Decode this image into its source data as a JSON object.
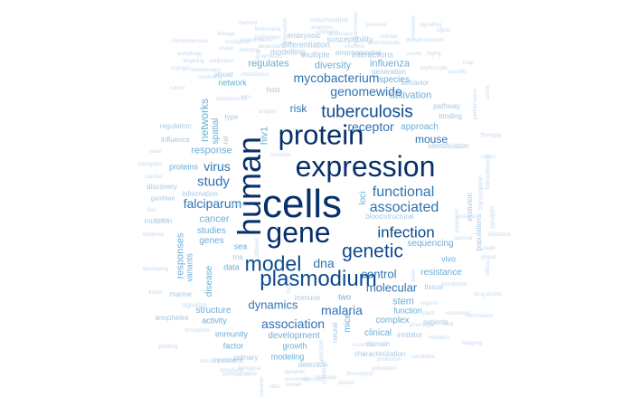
{
  "colors": {
    "darkest": "#08306b",
    "dark": "#0b4a8f",
    "mid": "#2f72b4",
    "light": "#6aaed6",
    "pale": "#a6c8e4",
    "faint": "#c6dbef"
  },
  "words": [
    {
      "text": "cells",
      "tier": "darkest",
      "orient": "h"
    },
    {
      "text": "human",
      "tier": "darkest",
      "orient": "v"
    },
    {
      "text": "expression",
      "tier": "darkest",
      "orient": "h"
    },
    {
      "text": "gene",
      "tier": "darkest",
      "orient": "h"
    },
    {
      "text": "protein",
      "tier": "darkest",
      "orient": "h"
    },
    {
      "text": "plasmodium",
      "tier": "dark",
      "orient": "h"
    },
    {
      "text": "model",
      "tier": "dark",
      "orient": "h"
    },
    {
      "text": "genetic",
      "tier": "dark",
      "orient": "h"
    },
    {
      "text": "tuberculosis",
      "tier": "dark",
      "orient": "h"
    },
    {
      "text": "infection",
      "tier": "dark",
      "orient": "h"
    },
    {
      "text": "associated",
      "tier": "mid",
      "orient": "h"
    },
    {
      "text": "functional",
      "tier": "mid",
      "orient": "h"
    },
    {
      "text": "genomewide",
      "tier": "mid",
      "orient": "h"
    },
    {
      "text": "mycobacterium",
      "tier": "mid",
      "orient": "h"
    },
    {
      "text": "receptor",
      "tier": "mid",
      "orient": "h"
    },
    {
      "text": "study",
      "tier": "mid",
      "orient": "h"
    },
    {
      "text": "virus",
      "tier": "mid",
      "orient": "h"
    },
    {
      "text": "falciparum",
      "tier": "mid",
      "orient": "h"
    },
    {
      "text": "dna",
      "tier": "mid",
      "orient": "h"
    },
    {
      "text": "molecular",
      "tier": "mid",
      "orient": "h"
    },
    {
      "text": "control",
      "tier": "mid",
      "orient": "h"
    },
    {
      "text": "malaria",
      "tier": "mid",
      "orient": "h"
    },
    {
      "text": "association",
      "tier": "mid",
      "orient": "h"
    },
    {
      "text": "dynamics",
      "tier": "mid",
      "orient": "h"
    },
    {
      "text": "mouse",
      "tier": "mid",
      "orient": "h"
    },
    {
      "text": "risk",
      "tier": "mid",
      "orient": "h"
    },
    {
      "text": "networks",
      "tier": "light",
      "orient": "v"
    },
    {
      "text": "hiv1",
      "tier": "light",
      "orient": "v"
    },
    {
      "text": "response",
      "tier": "light",
      "orient": "h"
    },
    {
      "text": "cancer",
      "tier": "light",
      "orient": "h"
    },
    {
      "text": "genes",
      "tier": "light",
      "orient": "h"
    },
    {
      "text": "studies",
      "tier": "light",
      "orient": "h"
    },
    {
      "text": "responses",
      "tier": "light",
      "orient": "v"
    },
    {
      "text": "regulates",
      "tier": "light",
      "orient": "h"
    },
    {
      "text": "diversity",
      "tier": "light",
      "orient": "h"
    },
    {
      "text": "influenza",
      "tier": "light",
      "orient": "h"
    },
    {
      "text": "species",
      "tier": "light",
      "orient": "h"
    },
    {
      "text": "activation",
      "tier": "light",
      "orient": "h"
    },
    {
      "text": "approach",
      "tier": "light",
      "orient": "h"
    },
    {
      "text": "loci",
      "tier": "light",
      "orient": "v"
    },
    {
      "text": "resistance",
      "tier": "light",
      "orient": "h"
    },
    {
      "text": "sequencing",
      "tier": "light",
      "orient": "h"
    },
    {
      "text": "stem",
      "tier": "light",
      "orient": "h"
    },
    {
      "text": "mice",
      "tier": "light",
      "orient": "v"
    },
    {
      "text": "development",
      "tier": "light",
      "orient": "h"
    },
    {
      "text": "complex",
      "tier": "light",
      "orient": "h"
    },
    {
      "text": "clinical",
      "tier": "light",
      "orient": "h"
    },
    {
      "text": "structure",
      "tier": "light",
      "orient": "h"
    },
    {
      "text": "activity",
      "tier": "light",
      "orient": "h"
    },
    {
      "text": "disease",
      "tier": "light",
      "orient": "v"
    },
    {
      "text": "variants",
      "tier": "light",
      "orient": "v"
    },
    {
      "text": "spatial",
      "tier": "light",
      "orient": "v"
    },
    {
      "text": "data",
      "tier": "light",
      "orient": "h"
    },
    {
      "text": "sea",
      "tier": "light",
      "orient": "h"
    },
    {
      "text": "proteins",
      "tier": "light",
      "orient": "h"
    },
    {
      "text": "network",
      "tier": "light",
      "orient": "h"
    },
    {
      "text": "growth",
      "tier": "light",
      "orient": "h"
    },
    {
      "text": "modeling",
      "tier": "light",
      "orient": "h"
    },
    {
      "text": "vivo",
      "tier": "light",
      "orient": "h"
    },
    {
      "text": "two",
      "tier": "light",
      "orient": "h"
    },
    {
      "text": "function",
      "tier": "light",
      "orient": "h"
    },
    {
      "text": "factor",
      "tier": "light",
      "orient": "h"
    },
    {
      "text": "immunity",
      "tier": "light",
      "orient": "h"
    },
    {
      "text": "modelling",
      "tier": "pale",
      "orient": "h"
    },
    {
      "text": "multiple",
      "tier": "pale",
      "orient": "h"
    },
    {
      "text": "interactions",
      "tier": "pale",
      "orient": "h"
    },
    {
      "text": "differentiation",
      "tier": "pale",
      "orient": "h"
    },
    {
      "text": "susceptibility",
      "tier": "pale",
      "orient": "h"
    },
    {
      "text": "regulation",
      "tier": "pale",
      "orient": "h"
    },
    {
      "text": "influence",
      "tier": "pale",
      "orient": "h"
    },
    {
      "text": "discovery",
      "tier": "pale",
      "orient": "h"
    },
    {
      "text": "mutation",
      "tier": "pale",
      "orient": "h"
    },
    {
      "text": "domain",
      "tier": "pale",
      "orient": "h"
    },
    {
      "text": "characterization",
      "tier": "pale",
      "orient": "h"
    },
    {
      "text": "patients",
      "tier": "pale",
      "orient": "h"
    },
    {
      "text": "pathway",
      "tier": "pale",
      "orient": "h"
    },
    {
      "text": "identification",
      "tier": "pale",
      "orient": "h"
    },
    {
      "text": "marine",
      "tier": "pale",
      "orient": "h"
    },
    {
      "text": "anopheles",
      "tier": "pale",
      "orient": "h"
    },
    {
      "text": "inhibitor",
      "tier": "pale",
      "orient": "h"
    },
    {
      "text": "neural",
      "tier": "pale",
      "orient": "v"
    },
    {
      "text": "detection",
      "tier": "pale",
      "orient": "h"
    },
    {
      "text": "information",
      "tier": "pale",
      "orient": "h"
    },
    {
      "text": "populations",
      "tier": "pale",
      "orient": "v"
    },
    {
      "text": "evolution",
      "tier": "pale",
      "orient": "v"
    },
    {
      "text": "structural",
      "tier": "pale",
      "orient": "h"
    },
    {
      "text": "blood",
      "tier": "pale",
      "orient": "h"
    },
    {
      "text": "binding",
      "tier": "pale",
      "orient": "h"
    },
    {
      "text": "behavior",
      "tier": "pale",
      "orient": "h"
    },
    {
      "text": "visual",
      "tier": "pale",
      "orient": "h"
    },
    {
      "text": "host",
      "tier": "pale",
      "orient": "h"
    },
    {
      "text": "type",
      "tier": "pale",
      "orient": "h"
    },
    {
      "text": "rna",
      "tier": "pale",
      "orient": "h"
    },
    {
      "text": "rat",
      "tier": "pale",
      "orient": "v"
    },
    {
      "text": "tissue",
      "tier": "pale",
      "orient": "h"
    },
    {
      "text": "immune",
      "tier": "pale",
      "orient": "h"
    },
    {
      "text": "primary",
      "tier": "pale",
      "orient": "h"
    },
    {
      "text": "treatment",
      "tier": "pale",
      "orient": "h"
    },
    {
      "text": "generation",
      "tier": "pale",
      "orient": "h"
    },
    {
      "text": "embryonic",
      "tier": "pale",
      "orient": "h"
    },
    {
      "text": "environmental",
      "tier": "pale",
      "orient": "h"
    },
    {
      "text": "gambiae",
      "tier": "pale",
      "orient": "h"
    },
    {
      "text": "samples",
      "tier": "faint",
      "orient": "h"
    },
    {
      "text": "transmission",
      "tier": "faint",
      "orient": "v"
    },
    {
      "text": "synaptic",
      "tier": "faint",
      "orient": "v"
    },
    {
      "text": "transcription",
      "tier": "faint",
      "orient": "v"
    },
    {
      "text": "mitochondrial",
      "tier": "faint",
      "orient": "h"
    },
    {
      "text": "pathogen",
      "tier": "faint",
      "orient": "h"
    },
    {
      "text": "therapy",
      "tier": "faint",
      "orient": "h"
    },
    {
      "text": "signaling",
      "tier": "faint",
      "orient": "h"
    },
    {
      "text": "selection",
      "tier": "faint",
      "orient": "v"
    },
    {
      "text": "common",
      "tier": "faint",
      "orient": "v"
    },
    {
      "text": "comparative",
      "tier": "faint",
      "orient": "h"
    },
    {
      "text": "biological",
      "tier": "faint",
      "orient": "h"
    },
    {
      "text": "mechanism",
      "tier": "faint",
      "orient": "h"
    },
    {
      "text": "conserved",
      "tier": "faint",
      "orient": "h"
    },
    {
      "text": "candidate",
      "tier": "faint",
      "orient": "h"
    },
    {
      "text": "population",
      "tier": "faint",
      "orient": "h"
    },
    {
      "text": "dynamic",
      "tier": "faint",
      "orient": "h"
    },
    {
      "text": "system",
      "tier": "faint",
      "orient": "h"
    },
    {
      "text": "screening",
      "tier": "faint",
      "orient": "h"
    },
    {
      "text": "profiling",
      "tier": "faint",
      "orient": "h"
    },
    {
      "text": "drosophila",
      "tier": "faint",
      "orient": "h"
    },
    {
      "text": "transcriptional",
      "tier": "faint",
      "orient": "h"
    },
    {
      "text": "experimental",
      "tier": "faint",
      "orient": "h"
    },
    {
      "text": "vitro",
      "tier": "faint",
      "orient": "h"
    },
    {
      "text": "acid",
      "tier": "faint",
      "orient": "h"
    },
    {
      "text": "cellular",
      "tier": "faint",
      "orient": "h"
    },
    {
      "text": "analyses",
      "tier": "faint",
      "orient": "h"
    },
    {
      "text": "systems",
      "tier": "faint",
      "orient": "h"
    },
    {
      "text": "global",
      "tier": "faint",
      "orient": "h"
    },
    {
      "text": "effects",
      "tier": "faint",
      "orient": "v"
    },
    {
      "text": "strains",
      "tier": "faint",
      "orient": "h"
    },
    {
      "text": "regions",
      "tier": "faint",
      "orient": "h"
    },
    {
      "text": "phenotype",
      "tier": "faint",
      "orient": "h"
    },
    {
      "text": "survival",
      "tier": "faint",
      "orient": "h"
    },
    {
      "text": "pandemic",
      "tier": "faint",
      "orient": "v"
    },
    {
      "text": "active",
      "tier": "faint",
      "orient": "v"
    },
    {
      "text": "performance",
      "tier": "faint",
      "orient": "v"
    },
    {
      "text": "highly",
      "tier": "faint",
      "orient": "h"
    },
    {
      "text": "erythrocyte",
      "tier": "faint",
      "orient": "h"
    },
    {
      "text": "phosphorylation",
      "tier": "faint",
      "orient": "h"
    },
    {
      "text": "mosquito",
      "tier": "faint",
      "orient": "h"
    },
    {
      "text": "essential",
      "tier": "faint",
      "orient": "h"
    },
    {
      "text": "throughput",
      "tier": "faint",
      "orient": "h"
    },
    {
      "text": "leishmania",
      "tier": "faint",
      "orient": "h"
    },
    {
      "text": "antibodies",
      "tier": "faint",
      "orient": "h"
    },
    {
      "text": "ecological",
      "tier": "faint",
      "orient": "h"
    },
    {
      "text": "impact",
      "tier": "faint",
      "orient": "h"
    },
    {
      "text": "yeast",
      "tier": "faint",
      "orient": "h"
    },
    {
      "text": "liver",
      "tier": "faint",
      "orient": "h"
    },
    {
      "text": "cardiac",
      "tier": "faint",
      "orient": "h"
    },
    {
      "text": "clustering",
      "tier": "faint",
      "orient": "h"
    },
    {
      "text": "involved",
      "tier": "faint",
      "orient": "h"
    },
    {
      "text": "levels",
      "tier": "faint",
      "orient": "h"
    },
    {
      "text": "different",
      "tier": "faint",
      "orient": "v"
    },
    {
      "text": "factors",
      "tier": "faint",
      "orient": "v"
    },
    {
      "text": "brain",
      "tier": "faint",
      "orient": "v"
    },
    {
      "text": "plant",
      "tier": "faint",
      "orient": "h"
    },
    {
      "text": "viral",
      "tier": "faint",
      "orient": "h"
    },
    {
      "text": "drug",
      "tier": "faint",
      "orient": "h"
    },
    {
      "text": "membrane",
      "tier": "faint",
      "orient": "h"
    },
    {
      "text": "stage",
      "tier": "faint",
      "orient": "h"
    },
    {
      "text": "protection",
      "tier": "faint",
      "orient": "h"
    },
    {
      "text": "sensitivity",
      "tier": "faint",
      "orient": "h"
    },
    {
      "text": "variation",
      "tier": "faint",
      "orient": "v"
    },
    {
      "text": "sites",
      "tier": "faint",
      "orient": "h"
    },
    {
      "text": "evolutionary",
      "tier": "faint",
      "orient": "h"
    },
    {
      "text": "developing",
      "tier": "faint",
      "orient": "h"
    },
    {
      "text": "inhibition",
      "tier": "faint",
      "orient": "h"
    },
    {
      "text": "mapping",
      "tier": "faint",
      "orient": "h"
    },
    {
      "text": "interactome",
      "tier": "faint",
      "orient": "h"
    },
    {
      "text": "shape",
      "tier": "faint",
      "orient": "h"
    },
    {
      "text": "antigen",
      "tier": "faint",
      "orient": "h"
    },
    {
      "text": "method",
      "tier": "faint",
      "orient": "h"
    },
    {
      "text": "tumor",
      "tier": "faint",
      "orient": "h"
    },
    {
      "text": "infected",
      "tier": "faint",
      "orient": "h"
    },
    {
      "text": "cortex",
      "tier": "faint",
      "orient": "h"
    },
    {
      "text": "pressure",
      "tier": "faint",
      "orient": "h"
    },
    {
      "text": "dependent",
      "tier": "faint",
      "orient": "h"
    },
    {
      "text": "coding",
      "tier": "faint",
      "orient": "v"
    },
    {
      "text": "interaction",
      "tier": "faint",
      "orient": "v"
    },
    {
      "text": "quantity",
      "tier": "faint",
      "orient": "h"
    },
    {
      "text": "mutations",
      "tier": "faint",
      "orient": "v"
    },
    {
      "text": "signalling",
      "tier": "faint",
      "orient": "h"
    },
    {
      "text": "comprehensive",
      "tier": "faint",
      "orient": "h"
    },
    {
      "text": "cohort",
      "tier": "faint",
      "orient": "h"
    },
    {
      "text": "autophagy",
      "tier": "faint",
      "orient": "h"
    },
    {
      "text": "lineage",
      "tier": "faint",
      "orient": "h"
    },
    {
      "text": "sexual",
      "tier": "faint",
      "orient": "h"
    },
    {
      "text": "microbial",
      "tier": "faint",
      "orient": "h"
    },
    {
      "text": "infectious",
      "tier": "faint",
      "orient": "h"
    },
    {
      "text": "epidemic",
      "tier": "faint",
      "orient": "h"
    },
    {
      "text": "strategies",
      "tier": "faint",
      "orient": "h"
    },
    {
      "text": "landscape",
      "tier": "faint",
      "orient": "h"
    },
    {
      "text": "pseudomonas",
      "tier": "faint",
      "orient": "v"
    },
    {
      "text": "changes",
      "tier": "faint",
      "orient": "h"
    },
    {
      "text": "targeting",
      "tier": "faint",
      "orient": "h"
    },
    {
      "text": "independent",
      "tier": "faint",
      "orient": "h"
    },
    {
      "text": "interplay",
      "tier": "faint",
      "orient": "h"
    },
    {
      "text": "symbiont",
      "tier": "faint",
      "orient": "h"
    },
    {
      "text": "neurons",
      "tier": "faint",
      "orient": "h"
    },
    {
      "text": "cluster",
      "tier": "faint",
      "orient": "h"
    },
    {
      "text": "signal",
      "tier": "faint",
      "orient": "h"
    },
    {
      "text": "map",
      "tier": "faint",
      "orient": "h"
    },
    {
      "text": "biology",
      "tier": "faint",
      "orient": "h"
    },
    {
      "text": "emerging",
      "tier": "faint",
      "orient": "h"
    },
    {
      "text": "role",
      "tier": "faint",
      "orient": "h"
    },
    {
      "text": "rates",
      "tier": "faint",
      "orient": "h"
    }
  ]
}
